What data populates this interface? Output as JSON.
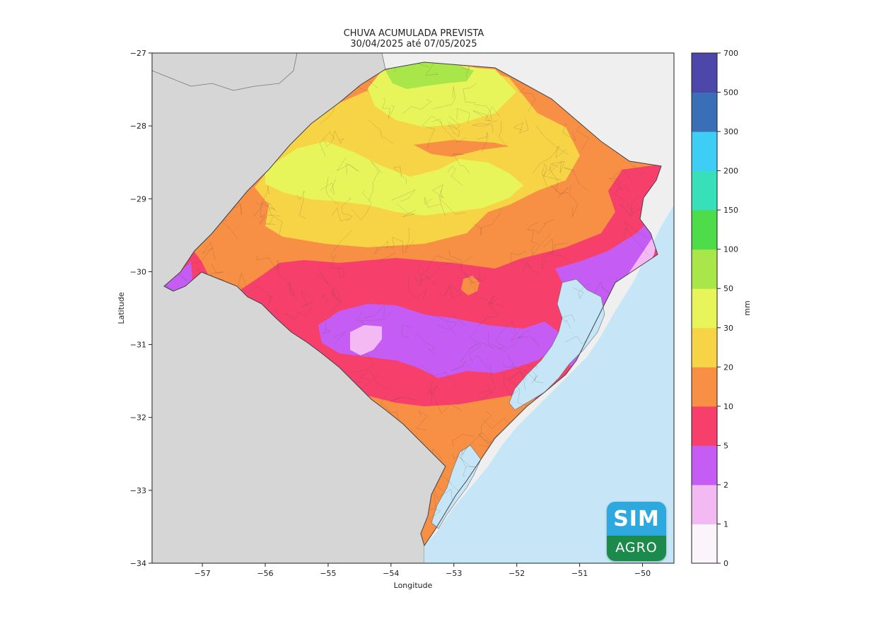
{
  "title": {
    "line1": "CHUVA ACUMULADA PREVISTA",
    "line2": "30/04/2025 até 07/05/2025"
  },
  "axes": {
    "xlabel": "Longitude",
    "ylabel": "Latitude",
    "xlim": [
      -57.8,
      -49.5
    ],
    "ylim": [
      -34,
      -27
    ],
    "xticks": [
      -57,
      -56,
      -55,
      -54,
      -53,
      -52,
      -51,
      -50
    ],
    "yticks": [
      -27,
      -28,
      -29,
      -30,
      -31,
      -32,
      -33,
      -34
    ],
    "grid": false
  },
  "colorbar": {
    "unit_label": "mm",
    "levels": [
      "0",
      "1",
      "2",
      "5",
      "10",
      "20",
      "30",
      "50",
      "100",
      "150",
      "200",
      "300",
      "500",
      "700"
    ],
    "colors": [
      "#fbf4fb",
      "#f3b9f3",
      "#c55df5",
      "#f6406b",
      "#f78f45",
      "#f7d446",
      "#e8f55a",
      "#a8e64a",
      "#4fdc4a",
      "#37e0b8",
      "#3ecdf5",
      "#3a6fb8",
      "#4c47a8"
    ]
  },
  "logo": {
    "top_text": "SIM",
    "bottom_text": "AGRO"
  },
  "colors": {
    "ocean": "#c6e6f7",
    "neighbor_land": "#d6d6d6",
    "background_light": "#efefef",
    "border": "#555555"
  }
}
